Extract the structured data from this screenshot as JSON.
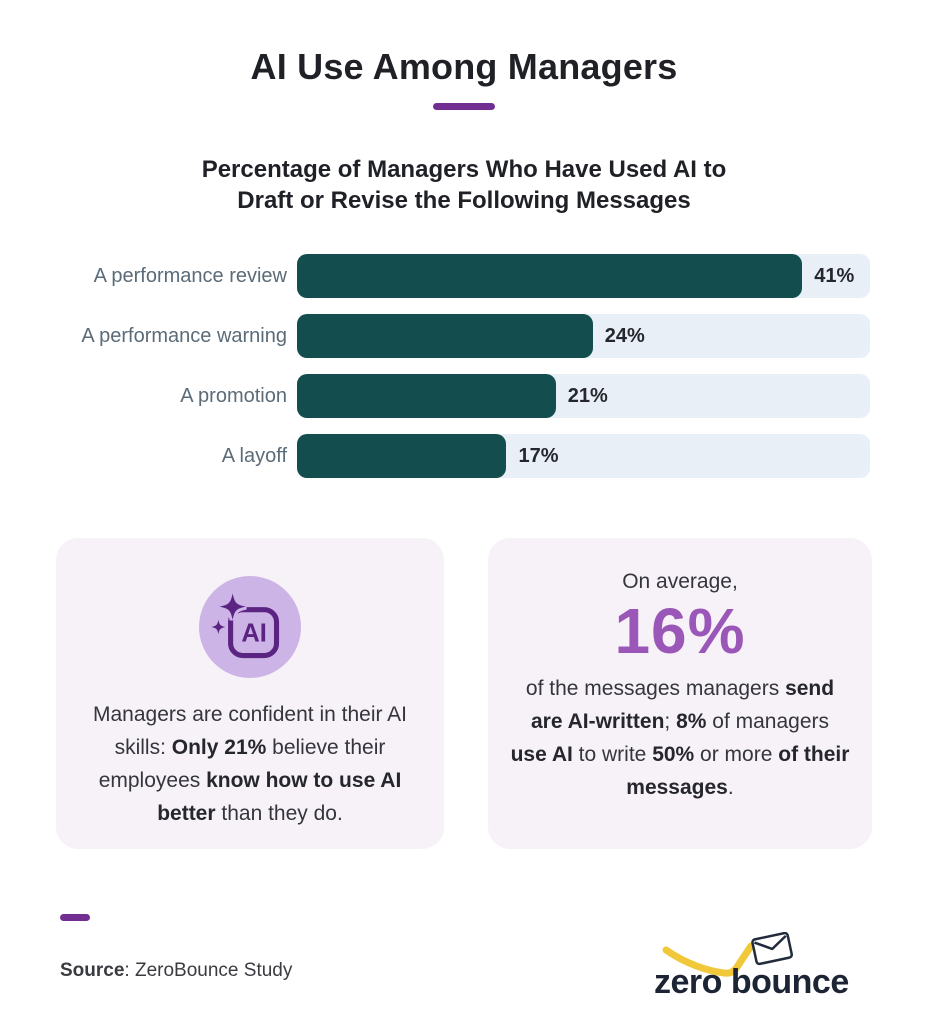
{
  "page": {
    "title": "AI Use Among Managers",
    "subtitle_lines": [
      "Percentage of Managers Who Have Used AI to",
      "Draft or Revise the Following Messages"
    ]
  },
  "chart_data": {
    "type": "bar",
    "orientation": "horizontal",
    "title": "Percentage of Managers Who Have Used AI to Draft or Revise the Following Messages",
    "categories": [
      "A performance review",
      "A performance warning",
      "A promotion",
      "A layoff"
    ],
    "values": [
      41,
      24,
      21,
      17
    ],
    "value_labels": [
      "41%",
      "24%",
      "21%",
      "17%"
    ],
    "value_suffix": "%",
    "xlim": [
      0,
      46.5
    ],
    "grid": false,
    "legend": false,
    "bar_color": "#134d4e",
    "track_color": "#e8eff6"
  },
  "cards": {
    "left": {
      "icon": "ai-sparkle-icon",
      "icon_label": "AI",
      "text_segments": [
        {
          "text": "Managers are confident in their AI skills: ",
          "bold": false
        },
        {
          "text": "Only 21%",
          "bold": true
        },
        {
          "text": " believe their employees ",
          "bold": false
        },
        {
          "text": "know how to use AI better",
          "bold": true
        },
        {
          "text": " than they do.",
          "bold": false
        }
      ]
    },
    "right": {
      "intro": "On average,",
      "stat": "16%",
      "text_segments": [
        {
          "text": "of the messages managers ",
          "bold": false
        },
        {
          "text": "send are AI-written",
          "bold": true
        },
        {
          "text": "; ",
          "bold": false
        },
        {
          "text": "8%",
          "bold": true
        },
        {
          "text": " of managers ",
          "bold": false
        },
        {
          "text": "use AI",
          "bold": true
        },
        {
          "text": " to write ",
          "bold": false
        },
        {
          "text": "50%",
          "bold": true
        },
        {
          "text": " or more ",
          "bold": false
        },
        {
          "text": "of their messages",
          "bold": true
        },
        {
          "text": ".",
          "bold": false
        }
      ]
    }
  },
  "footer": {
    "source_label": "Source",
    "source_text": ": ZeroBounce Study",
    "logo_text": "zero bounce"
  },
  "colors": {
    "accent_purple": "#722f91",
    "stat_purple": "#9a57b8",
    "icon_circle_purple": "#cdb4e6",
    "icon_dark_purple": "#5b2382",
    "bar_teal": "#134d4e",
    "bar_track": "#e8eff6",
    "card_background": "#f7f2f8",
    "category_label": "#5b6b78",
    "logo_navy": "#1d2534",
    "logo_yellow": "#f0c83a"
  }
}
